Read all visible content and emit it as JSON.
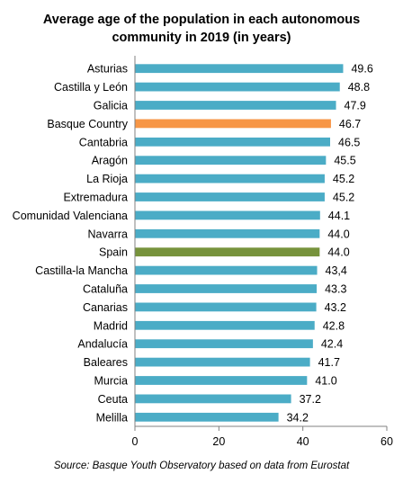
{
  "chart_data": {
    "type": "bar",
    "orientation": "horizontal",
    "title_lines": [
      "Average age of the population in each autonomous",
      "community in 2019 (in years)"
    ],
    "categories": [
      "Asturias",
      "Castilla y León",
      "Galicia",
      "Basque Country",
      "Cantabria",
      "Aragón",
      "La Rioja",
      "Extremadura",
      "Comunidad Valenciana",
      "Navarra",
      "Spain",
      "Castilla-la Mancha",
      "Cataluña",
      "Canarias",
      "Madrid",
      "Andalucía",
      "Baleares",
      "Murcia",
      "Ceuta",
      "Melilla"
    ],
    "values": [
      49.6,
      48.8,
      47.9,
      46.7,
      46.5,
      45.5,
      45.2,
      45.2,
      44.1,
      44.0,
      44.0,
      43.4,
      43.3,
      43.2,
      42.8,
      42.4,
      41.7,
      41.0,
      37.2,
      34.2
    ],
    "value_labels": [
      "49.6",
      "48.8",
      "47.9",
      "46.7",
      "46.5",
      "45.5",
      "45.2",
      "45.2",
      "44.1",
      "44.0",
      "44.0",
      "43,4",
      "43.3",
      "43.2",
      "42.8",
      "42.4",
      "41.7",
      "41.0",
      "37.2",
      "34.2"
    ],
    "xlim": [
      0,
      60
    ],
    "xticks": [
      "0",
      "20",
      "40",
      "60"
    ],
    "grid": false,
    "colors": {
      "default": "#4bacc6",
      "highlight_basque": "#f79646",
      "highlight_spain": "#77933c",
      "axis": "#808080"
    },
    "highlight": {
      "Basque Country": "#f79646",
      "Spain": "#77933c"
    }
  },
  "source": "Source: Basque Youth Observatory based on data from Eurostat"
}
